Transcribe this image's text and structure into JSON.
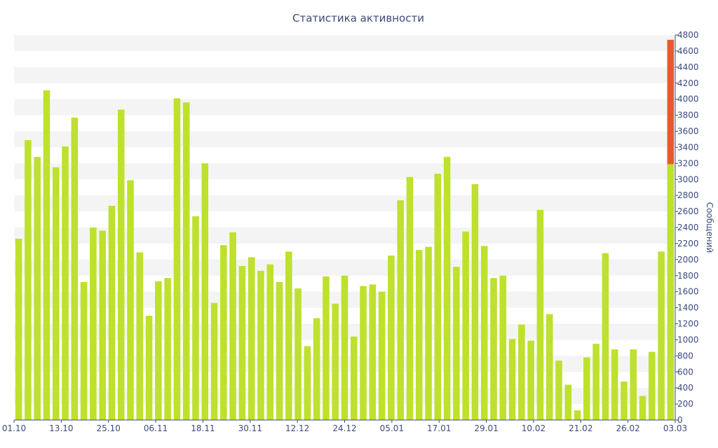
{
  "chart_data": {
    "type": "bar",
    "title": "Статистика активности",
    "ylabel": "Сообщений",
    "xlabel": "",
    "ylim": [
      0,
      4800
    ],
    "y_ticks": [
      0,
      200,
      400,
      600,
      800,
      1000,
      1200,
      1400,
      1600,
      1800,
      2000,
      2200,
      2400,
      2600,
      2800,
      3000,
      3200,
      3400,
      3600,
      3800,
      4000,
      4200,
      4400,
      4600,
      4800
    ],
    "y_axis_position": "right",
    "grid": "alternating horizontal bands",
    "x_tick_labels": [
      "01.10",
      "13.10",
      "25.10",
      "06.11",
      "18.11",
      "30.11",
      "12.12",
      "24.12",
      "05.01",
      "17.01",
      "29.01",
      "10.02",
      "21.02",
      "26.02",
      "03.03"
    ],
    "bar_color": "#bde12d",
    "highlight_color": "#e65a2e",
    "values": [
      2260,
      3490,
      3280,
      4110,
      3150,
      3410,
      3770,
      1720,
      2400,
      2360,
      2670,
      3870,
      2990,
      2090,
      1300,
      1730,
      1770,
      4010,
      3960,
      2540,
      3200,
      1460,
      2180,
      2340,
      1920,
      2030,
      1860,
      1940,
      1720,
      2100,
      1640,
      920,
      1270,
      1790,
      1450,
      1800,
      1040,
      1670,
      1690,
      1600,
      2050,
      2740,
      3030,
      2120,
      2160,
      3070,
      3280,
      1910,
      2350,
      2940,
      2170,
      1770,
      1800,
      1010,
      1190,
      990,
      2620,
      1320,
      740,
      440,
      120,
      780,
      950,
      2080,
      880,
      480,
      880,
      300,
      850,
      2100,
      3190
    ],
    "highlight": {
      "base": 3190,
      "top": 4740
    }
  }
}
